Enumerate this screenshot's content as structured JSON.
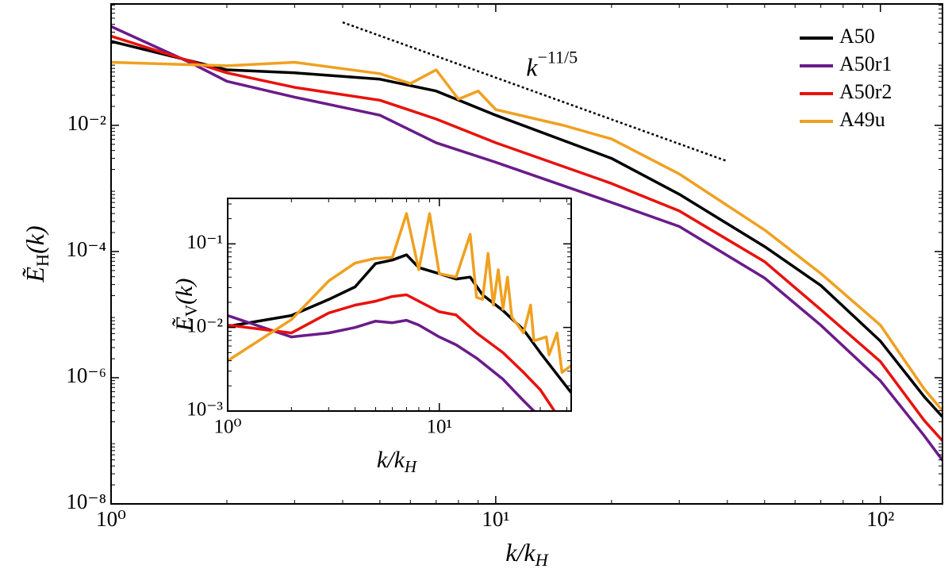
{
  "chart_data": [
    {
      "type": "line",
      "xscale": "log",
      "yscale": "log",
      "x_label": {
        "main": "k/k",
        "sub": "H"
      },
      "y_label": {
        "main": "Ẽ",
        "sub": "H",
        "tail": "(k)"
      },
      "xlim": [
        1,
        145
      ],
      "ylim": [
        1e-08,
        0.84
      ],
      "xticks": [
        {
          "value": 1,
          "label": "10⁰"
        },
        {
          "value": 10,
          "label": "10¹"
        },
        {
          "value": 100,
          "label": "10²"
        }
      ],
      "yticks": [
        {
          "value": 1e-08,
          "label": "10⁻⁸"
        },
        {
          "value": 1e-06,
          "label": "10⁻⁶"
        },
        {
          "value": 0.0001,
          "label": "10⁻⁴"
        },
        {
          "value": 0.01,
          "label": "10⁻²"
        }
      ],
      "legend": "upper right",
      "series": [
        {
          "name": "A50",
          "color": "#000000",
          "x": [
            1,
            2,
            3,
            5,
            7,
            10,
            20,
            30,
            50,
            70,
            100,
            130,
            145
          ],
          "values": [
            0.215,
            0.076,
            0.068,
            0.054,
            0.035,
            0.0145,
            0.003,
            0.00081,
            0.00012,
            2.9e-05,
            3.8e-06,
            5e-07,
            2.4e-07
          ]
        },
        {
          "name": "A50r1",
          "color": "#6a1b8a",
          "x": [
            1,
            1.6,
            2,
            3,
            5,
            7,
            10,
            20,
            30,
            50,
            70,
            100,
            130,
            145
          ],
          "values": [
            0.37,
            0.1,
            0.05,
            0.028,
            0.0145,
            0.0053,
            0.0026,
            0.0006,
            0.00025,
            3.8e-05,
            6.8e-06,
            8.9e-07,
            1.2e-07,
            4.9e-08
          ]
        },
        {
          "name": "A50r2",
          "color": "#e8120c",
          "x": [
            1,
            2,
            3,
            5,
            7,
            10,
            20,
            30,
            50,
            70,
            100,
            130,
            145
          ],
          "values": [
            0.26,
            0.068,
            0.04,
            0.025,
            0.0126,
            0.0053,
            0.0012,
            0.00044,
            6.9e-05,
            1.2e-05,
            1.8e-06,
            2.1e-07,
            1e-07
          ]
        },
        {
          "name": "A49u",
          "color": "#f0a020",
          "x": [
            1,
            2,
            3,
            5,
            6,
            7,
            8,
            9,
            10,
            15,
            20,
            30,
            50,
            70,
            100,
            130,
            145
          ],
          "values": [
            0.1,
            0.088,
            0.1,
            0.066,
            0.046,
            0.076,
            0.026,
            0.035,
            0.0178,
            0.01,
            0.0061,
            0.0017,
            0.00022,
            4.5e-05,
            6.8e-06,
            6.6e-07,
            3e-07
          ]
        }
      ],
      "reference_line": {
        "x": [
          4,
          40
        ],
        "values": [
          0.43,
          0.0027
        ],
        "style": "dotted",
        "color": "#000000"
      },
      "annotation": {
        "text": "k",
        "superscript": "−11/5",
        "x": 12,
        "y": 0.075
      }
    },
    {
      "type": "line",
      "xscale": "log",
      "yscale": "log",
      "x_label": {
        "main": "k/k",
        "sub": "H"
      },
      "y_label": {
        "main": "Ẽ",
        "sub": "V",
        "tail": "(k)"
      },
      "xlim": [
        1,
        42
      ],
      "ylim": [
        0.001,
        0.35
      ],
      "xticks": [
        {
          "value": 1,
          "label": "10⁰"
        },
        {
          "value": 10,
          "label": "10¹"
        }
      ],
      "yticks": [
        {
          "value": 0.001,
          "label": "10⁻³"
        },
        {
          "value": 0.01,
          "label": "10⁻²"
        },
        {
          "value": 0.1,
          "label": "10⁻¹"
        }
      ],
      "series": [
        {
          "color": "#000000",
          "x": [
            1,
            2,
            3,
            4,
            5,
            6,
            7,
            8,
            10,
            12,
            14,
            16,
            20,
            25,
            30,
            42
          ],
          "values": [
            0.0103,
            0.0139,
            0.0216,
            0.0306,
            0.058,
            0.064,
            0.074,
            0.052,
            0.044,
            0.038,
            0.04,
            0.0246,
            0.0159,
            0.0094,
            0.005,
            0.00166
          ]
        },
        {
          "color": "#6a1b8a",
          "x": [
            1,
            2,
            3,
            4,
            5,
            6,
            7,
            8,
            10,
            12,
            15,
            20,
            25,
            28
          ],
          "values": [
            0.0139,
            0.0077,
            0.0086,
            0.01,
            0.0119,
            0.0114,
            0.0122,
            0.0107,
            0.0077,
            0.0062,
            0.0043,
            0.0024,
            0.00133,
            0.001
          ]
        },
        {
          "color": "#e8120c",
          "x": [
            1,
            2,
            3,
            4,
            5,
            6,
            7,
            8,
            10,
            12,
            15,
            20,
            25,
            30,
            35
          ],
          "values": [
            0.0107,
            0.0086,
            0.0149,
            0.0185,
            0.0206,
            0.0235,
            0.0246,
            0.0206,
            0.0154,
            0.0141,
            0.0086,
            0.005,
            0.0029,
            0.0018,
            0.001
          ]
        },
        {
          "color": "#f0a020",
          "x": [
            1,
            2,
            3,
            4,
            5,
            6,
            7,
            8,
            9,
            10,
            12,
            14,
            15,
            16,
            17,
            18,
            19,
            20,
            21,
            22,
            25,
            27,
            28,
            32,
            33,
            36,
            38,
            42
          ],
          "values": [
            0.004,
            0.0124,
            0.036,
            0.059,
            0.067,
            0.069,
            0.23,
            0.049,
            0.23,
            0.044,
            0.04,
            0.13,
            0.023,
            0.0216,
            0.077,
            0.0185,
            0.049,
            0.0165,
            0.04,
            0.0133,
            0.0086,
            0.0185,
            0.0069,
            0.0077,
            0.0047,
            0.0086,
            0.0029,
            0.0035
          ]
        }
      ]
    }
  ]
}
